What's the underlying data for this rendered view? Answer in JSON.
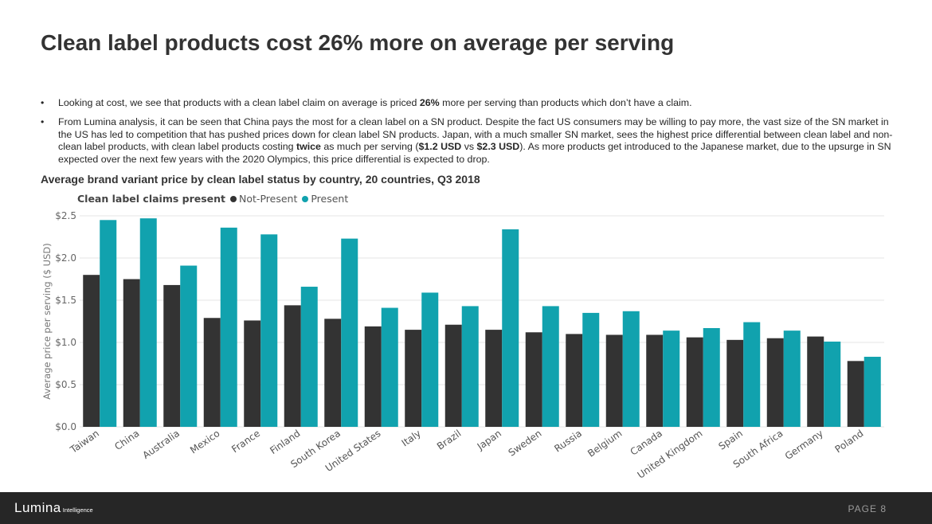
{
  "slide": {
    "title": "Clean label products cost 26% more on average per serving",
    "bullets": [
      [
        "Looking at cost, we see that products with a clean label claim on average is priced ",
        {
          "b": "26%"
        },
        " more per serving than products which don’t have a claim."
      ],
      [
        "From Lumina analysis, it can be seen that China pays the most for a clean label on a SN product. Despite the fact US consumers may be willing to pay more, the vast size of the SN market in the US has led to competition that has pushed prices down for clean label SN products. Japan, with a much smaller SN market, sees the highest price differential between clean label and non-clean label products, with clean label products costing ",
        {
          "b": "twice"
        },
        " as much per serving (",
        {
          "b": "$1.2 USD"
        },
        " vs ",
        {
          "b": "$2.3 USD"
        },
        "). As more products get introduced to the Japanese market, due to the upsurge in SN expected over the next few years with the 2020 Olympics, this price differential is expected to drop."
      ]
    ]
  },
  "chart_data": {
    "type": "bar",
    "title": "Average brand variant price by clean label status by country, 20 countries, Q3 2018",
    "legend_title": "Clean label claims present",
    "legend_position": "top-left",
    "ylabel": "Average price per serving ($ USD)",
    "ylim": [
      0,
      2.5
    ],
    "yticks": [
      "$0.0",
      "$0.5",
      "$1.0",
      "$1.5",
      "$2.0",
      "$2.5"
    ],
    "grid": true,
    "categories": [
      "Taiwan",
      "China",
      "Australia",
      "Mexico",
      "France",
      "Finland",
      "South Korea",
      "United States",
      "Italy",
      "Brazil",
      "Japan",
      "Sweden",
      "Russia",
      "Belgium",
      "Canada",
      "United Kingdom",
      "Spain",
      "South Africa",
      "Germany",
      "Poland"
    ],
    "series": [
      {
        "name": "Not-Present",
        "color": "#333333",
        "values": [
          1.8,
          1.75,
          1.68,
          1.29,
          1.26,
          1.44,
          1.28,
          1.19,
          1.15,
          1.21,
          1.15,
          1.12,
          1.1,
          1.09,
          1.09,
          1.06,
          1.03,
          1.05,
          1.07,
          0.78
        ]
      },
      {
        "name": "Present",
        "color": "#11a2ae",
        "values": [
          2.45,
          2.47,
          1.91,
          2.36,
          2.28,
          1.66,
          2.23,
          1.41,
          1.59,
          1.43,
          2.34,
          1.43,
          1.35,
          1.37,
          1.14,
          1.17,
          1.24,
          1.14,
          1.01,
          0.83
        ]
      }
    ]
  },
  "footer": {
    "logo_main": "Lumina",
    "logo_sub": "Intelligence",
    "page_label": "PAGE 8"
  }
}
